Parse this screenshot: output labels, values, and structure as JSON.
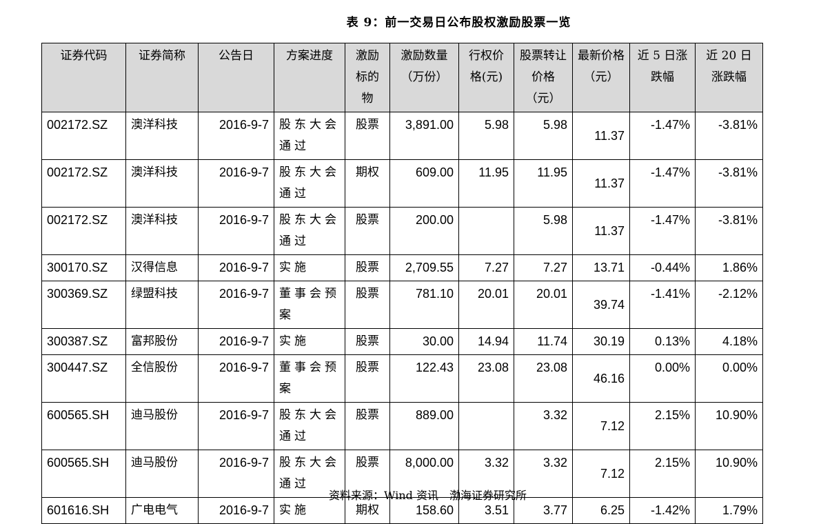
{
  "title": "表 9：前一交易日公布股权激励股票一览",
  "header_bg": "#d9d9d9",
  "columns": [
    "证券代码",
    "证券简称",
    "公告日",
    "方案进度",
    "激励标的物",
    "激励数量（万份）",
    "行权价格(元)",
    "股票转让价格（元）",
    "最新价格（元）",
    "近 5 日涨跌幅",
    "近 20 日涨跌幅"
  ],
  "rows": [
    [
      "002172.SZ",
      "澳洋科技",
      "2016-9-7",
      "股东大会通过",
      "股票",
      "3,891.00",
      "5.98",
      "5.98",
      "11.37",
      "-1.47%",
      "-3.81%"
    ],
    [
      "002172.SZ",
      "澳洋科技",
      "2016-9-7",
      "股东大会通过",
      "期权",
      "609.00",
      "11.95",
      "11.95",
      "11.37",
      "-1.47%",
      "-3.81%"
    ],
    [
      "002172.SZ",
      "澳洋科技",
      "2016-9-7",
      "股东大会通过",
      "股票",
      "200.00",
      "",
      "5.98",
      "11.37",
      "-1.47%",
      "-3.81%"
    ],
    [
      "300170.SZ",
      "汉得信息",
      "2016-9-7",
      "实施",
      "股票",
      "2,709.55",
      "7.27",
      "7.27",
      "13.71",
      "-0.44%",
      "1.86%"
    ],
    [
      "300369.SZ",
      "绿盟科技",
      "2016-9-7",
      "董事会预案",
      "股票",
      "781.10",
      "20.01",
      "20.01",
      "39.74",
      "-1.41%",
      "-2.12%"
    ],
    [
      "300387.SZ",
      "富邦股份",
      "2016-9-7",
      "实施",
      "股票",
      "30.00",
      "14.94",
      "11.74",
      "30.19",
      "0.13%",
      "4.18%"
    ],
    [
      "300447.SZ",
      "全信股份",
      "2016-9-7",
      "董事会预案",
      "股票",
      "122.43",
      "23.08",
      "23.08",
      "46.16",
      "0.00%",
      "0.00%"
    ],
    [
      "600565.SH",
      "迪马股份",
      "2016-9-7",
      "股东大会通过",
      "股票",
      "889.00",
      "",
      "3.32",
      "7.12",
      "2.15%",
      "10.90%"
    ],
    [
      "600565.SH",
      "迪马股份",
      "2016-9-7",
      "股东大会通过",
      "股票",
      "8,000.00",
      "3.32",
      "3.32",
      "7.12",
      "2.15%",
      "10.90%"
    ],
    [
      "601616.SH",
      "广电电气",
      "2016-9-7",
      "实施",
      "期权",
      "158.60",
      "3.51",
      "3.77",
      "6.25",
      "-1.42%",
      "1.79%"
    ]
  ],
  "source": "资料来源：Wind 资讯　渤海证券研究所"
}
